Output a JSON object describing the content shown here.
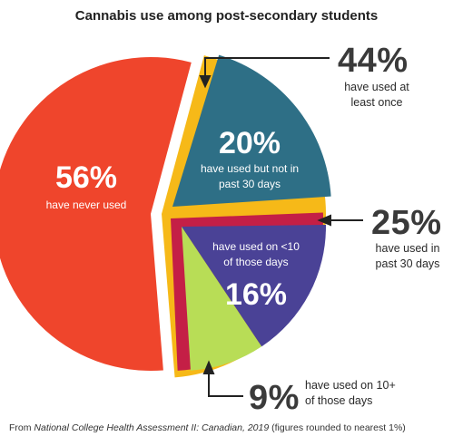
{
  "chart_data": {
    "type": "pie",
    "title": "Cannabis use among post-secondary students",
    "slices": [
      {
        "label": "have never used",
        "value": 56,
        "display": "56%",
        "color": "#ef452c"
      },
      {
        "label": "have used but not in past 30 days",
        "value": 20,
        "display": "20%",
        "color": "#2e6f86"
      },
      {
        "label": "have used on <10 of those days",
        "value": 16,
        "display": "16%",
        "color": "#4a4296"
      },
      {
        "label": "have used on 10+ of those days",
        "value": 9,
        "display": "9%",
        "color": "#b8dd56"
      }
    ],
    "groups": [
      {
        "label": "have used at least once",
        "display": "44%",
        "color": "#f6b918"
      },
      {
        "label": "have used in past 30 days",
        "display": "25%",
        "color": "#c41f46"
      }
    ],
    "source": {
      "prefix": "From ",
      "publication": "National College Health Assessment II: Canadian, 2019",
      "suffix": " (figures rounded to nearest 1%)"
    }
  }
}
